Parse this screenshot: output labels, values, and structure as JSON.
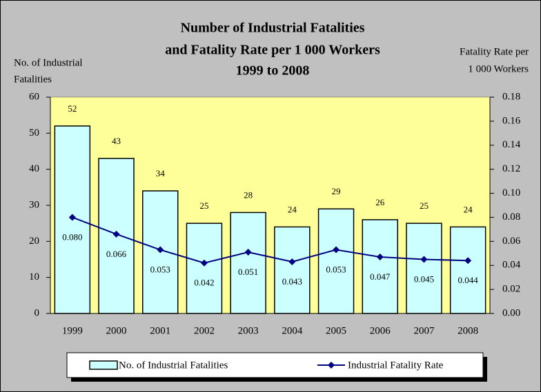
{
  "chart_data": {
    "type": "bar_line",
    "title": [
      "Number of Industrial Fatalities",
      "and Fatality Rate per 1 000 Workers",
      "1999 to 2008"
    ],
    "y_label": [
      "No. of Industrial",
      "Fatalities"
    ],
    "y2_label": [
      "Fatality Rate per",
      "1 000 Workers"
    ],
    "categories": [
      "1999",
      "2000",
      "2001",
      "2002",
      "2003",
      "2004",
      "2005",
      "2006",
      "2007",
      "2008"
    ],
    "series": [
      {
        "name": "No. of Industrial Fatalities",
        "type": "bar",
        "color": "#ccffff",
        "values": [
          52,
          43,
          34,
          25,
          28,
          24,
          29,
          26,
          25,
          24
        ]
      },
      {
        "name": "Industrial Fatality Rate",
        "type": "line",
        "axis": "y2",
        "color": "#000080",
        "values": [
          0.08,
          0.066,
          0.053,
          0.042,
          0.051,
          0.043,
          0.053,
          0.047,
          0.045,
          0.044
        ],
        "value_labels": [
          "0.080",
          "0.066",
          "0.053",
          "0.042",
          "0.051",
          "0.043",
          "0.053",
          "0.047",
          "0.045",
          "0.044"
        ]
      }
    ],
    "ylim": [
      0,
      60
    ],
    "yticks": [
      0,
      10,
      20,
      30,
      40,
      50,
      60
    ],
    "y2lim": [
      0,
      0.18
    ],
    "y2ticks": [
      {
        "value": 0,
        "label": "0.00"
      },
      {
        "value": 0.02,
        "label": "0.02"
      },
      {
        "value": 0.04,
        "label": "0.04"
      },
      {
        "value": 0.06,
        "label": "0.06"
      },
      {
        "value": 0.08,
        "label": "0.08"
      },
      {
        "value": 0.1,
        "label": "0.10"
      },
      {
        "value": 0.12,
        "label": "0.12"
      },
      {
        "value": 0.14,
        "label": "0.14"
      },
      {
        "value": 0.16,
        "label": "0.16"
      },
      {
        "value": 0.18,
        "label": "0.18"
      }
    ],
    "grid": false,
    "legend": "bottom",
    "plot_background": "#ffff99"
  }
}
